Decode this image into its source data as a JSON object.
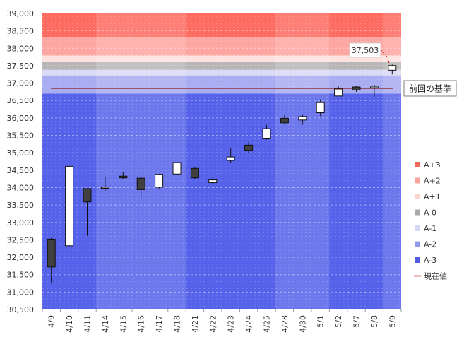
{
  "chart_data": {
    "type": "candlestick",
    "title": "",
    "xlabel": "",
    "ylabel": "",
    "ylim": [
      30500,
      39000
    ],
    "y_ticks": [
      30500,
      31000,
      31500,
      32000,
      32500,
      33000,
      33500,
      34000,
      34500,
      35000,
      35500,
      36000,
      36500,
      37000,
      37500,
      38000,
      38500,
      39000
    ],
    "y_tick_labels": [
      "30,500",
      "31,000",
      "31,500",
      "32,000",
      "32,500",
      "33,000",
      "33,500",
      "34,000",
      "34,500",
      "35,000",
      "35,500",
      "36,000",
      "36,500",
      "37,000",
      "37,500",
      "38,000",
      "38,500",
      "39,000"
    ],
    "categories": [
      "4/9",
      "4/10",
      "4/11",
      "4/14",
      "4/15",
      "4/16",
      "4/17",
      "4/18",
      "4/21",
      "4/22",
      "4/23",
      "4/24",
      "4/25",
      "4/28",
      "4/30",
      "5/1",
      "5/2",
      "5/7",
      "5/8",
      "5/9"
    ],
    "candles": [
      {
        "date": "4/9",
        "open": 32520,
        "high": 32560,
        "low": 31250,
        "close": 31720
      },
      {
        "date": "4/10",
        "open": 32330,
        "high": 34620,
        "low": 32330,
        "close": 34610
      },
      {
        "date": "4/11",
        "open": 33970,
        "high": 33980,
        "low": 32620,
        "close": 33590
      },
      {
        "date": "4/14",
        "open": 33990,
        "high": 34320,
        "low": 33900,
        "close": 34010
      },
      {
        "date": "4/15",
        "open": 34330,
        "high": 34450,
        "low": 34250,
        "close": 34280
      },
      {
        "date": "4/16",
        "open": 34270,
        "high": 34300,
        "low": 33700,
        "close": 33940
      },
      {
        "date": "4/17",
        "open": 34010,
        "high": 34390,
        "low": 33970,
        "close": 34380
      },
      {
        "date": "4/18",
        "open": 34390,
        "high": 34740,
        "low": 34260,
        "close": 34720
      },
      {
        "date": "4/21",
        "open": 34550,
        "high": 34580,
        "low": 34250,
        "close": 34280
      },
      {
        "date": "4/22",
        "open": 34140,
        "high": 34300,
        "low": 34100,
        "close": 34220
      },
      {
        "date": "4/23",
        "open": 34780,
        "high": 35140,
        "low": 34720,
        "close": 34880
      },
      {
        "date": "4/24",
        "open": 35220,
        "high": 35310,
        "low": 34980,
        "close": 35070
      },
      {
        "date": "4/25",
        "open": 35400,
        "high": 35800,
        "low": 35380,
        "close": 35690
      },
      {
        "date": "4/28",
        "open": 35990,
        "high": 36080,
        "low": 35810,
        "close": 35860
      },
      {
        "date": "4/30",
        "open": 35940,
        "high": 36090,
        "low": 35800,
        "close": 36040
      },
      {
        "date": "5/1",
        "open": 36150,
        "high": 36530,
        "low": 36050,
        "close": 36440
      },
      {
        "date": "5/2",
        "open": 36630,
        "high": 36920,
        "low": 36630,
        "close": 36830
      },
      {
        "date": "5/7",
        "open": 36890,
        "high": 36920,
        "low": 36750,
        "close": 36800
      },
      {
        "date": "5/8",
        "open": 36880,
        "high": 36950,
        "low": 36610,
        "close": 36890
      },
      {
        "date": "5/9",
        "open": 37370,
        "high": 37530,
        "low": 37250,
        "close": 37503
      }
    ],
    "zones": [
      {
        "name": "A+3",
        "from": 38320,
        "to": 39000,
        "color": "#fe6b60"
      },
      {
        "name": "A+2",
        "from": 37790,
        "to": 38320,
        "color": "#fda6a1"
      },
      {
        "name": "A+1",
        "from": 37600,
        "to": 37790,
        "color": "#fde2df"
      },
      {
        "name": "A 0",
        "from": 37380,
        "to": 37600,
        "color": "#b6b6b6"
      },
      {
        "name": "A-1",
        "from": 37220,
        "to": 37380,
        "color": "#d9daf6"
      },
      {
        "name": "A-2",
        "from": 36700,
        "to": 37220,
        "color": "#a8acf1"
      },
      {
        "name": "A-3",
        "from": 30500,
        "to": 36700,
        "color": "#5762ea"
      }
    ],
    "week_shading_groups": [
      [
        0,
        2
      ],
      [
        3,
        7
      ],
      [
        8,
        12
      ],
      [
        13,
        15
      ],
      [
        16,
        18
      ],
      [
        19,
        19
      ]
    ],
    "previous_reference": {
      "label": "前回の基準",
      "value": 36850,
      "color": "#8b1a1a"
    },
    "current_value": {
      "label": "37,503",
      "value": 37503
    },
    "legend": {
      "placement": "right",
      "items": [
        {
          "label": "A+3",
          "color": "#f8665c",
          "kind": "square"
        },
        {
          "label": "A+2",
          "color": "#f9a39b",
          "kind": "square"
        },
        {
          "label": "A+1",
          "color": "#fbd3cf",
          "kind": "square"
        },
        {
          "label": "A 0",
          "color": "#a9a9a9",
          "kind": "square"
        },
        {
          "label": "A-1",
          "color": "#d4d6f6",
          "kind": "square"
        },
        {
          "label": "A-2",
          "color": "#9399ec",
          "kind": "square"
        },
        {
          "label": "A-3",
          "color": "#525ce3",
          "kind": "square"
        },
        {
          "label": "現在値",
          "color": "#c00000",
          "kind": "line"
        }
      ]
    },
    "grid": true
  }
}
